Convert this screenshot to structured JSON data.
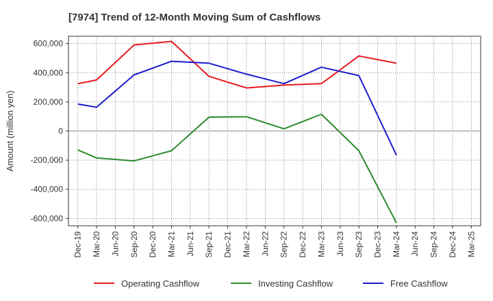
{
  "chart_data": {
    "type": "line",
    "title": "[7974]  Trend of 12-Month Moving Sum of Cashflows",
    "xlabel": "",
    "ylabel": "Amount (million yen)",
    "ylim": [
      -650000,
      650000
    ],
    "yticks": [
      600000,
      400000,
      200000,
      0,
      -200000,
      -400000,
      -600000
    ],
    "ytick_labels": [
      "600,000",
      "400,000",
      "200,000",
      "0",
      "-200,000",
      "-400,000",
      "-600,000"
    ],
    "categories": [
      "Dec-19",
      "Mar-20",
      "Jun-20",
      "Sep-20",
      "Dec-20",
      "Mar-21",
      "Jun-21",
      "Sep-21",
      "Dec-21",
      "Mar-22",
      "Jun-22",
      "Sep-22",
      "Dec-22",
      "Mar-23",
      "Jun-23",
      "Sep-23",
      "Dec-23",
      "Mar-24",
      "Jun-24",
      "Sep-24",
      "Dec-24",
      "Mar-25"
    ],
    "grid": true,
    "legend_position": "bottom",
    "series": [
      {
        "name": "Operating Cashflow",
        "color": "#e8191d",
        "values": [
          325000,
          350000,
          null,
          590000,
          null,
          615000,
          null,
          375000,
          null,
          295000,
          null,
          315000,
          null,
          325000,
          null,
          515000,
          null,
          465000,
          null,
          null,
          null,
          null
        ]
      },
      {
        "name": "Investing Cashflow",
        "color": "#2a8a2a",
        "values": [
          -130000,
          -185000,
          null,
          -205000,
          null,
          -135000,
          null,
          95000,
          null,
          98000,
          null,
          15000,
          null,
          115000,
          null,
          -135000,
          null,
          -630000,
          null,
          null,
          null,
          null
        ]
      },
      {
        "name": "Free Cashflow",
        "color": "#1a1acc",
        "values": [
          185000,
          163000,
          null,
          385000,
          null,
          478000,
          null,
          465000,
          null,
          390000,
          null,
          325000,
          null,
          438000,
          null,
          380000,
          null,
          -165000,
          null,
          null,
          null,
          null
        ]
      }
    ]
  }
}
